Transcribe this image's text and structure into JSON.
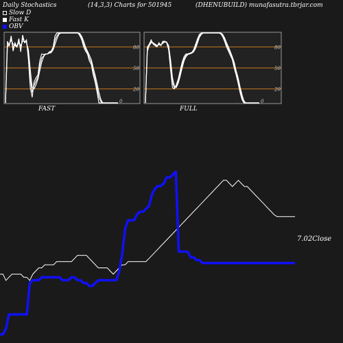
{
  "header": {
    "title": "Daily Stochastics",
    "params": "(14,3,3) Charts for 501945",
    "source": "(DHENUBUILD) munafasutra.tbrjar.com"
  },
  "legend": [
    {
      "label": "Slow  D",
      "color": "#ffffff"
    },
    {
      "label": "Fast K",
      "color": "#ffffff"
    },
    {
      "label": "OBV",
      "color": "#1010ff"
    }
  ],
  "colors": {
    "background": "#1a1a1a",
    "panel": "#222222",
    "level_line": "#c8781e",
    "obv": "#1010ff",
    "price": "#ffffff"
  },
  "chart_data": [
    {
      "type": "line",
      "title": "FAST",
      "ylim": [
        0,
        100
      ],
      "yticks": [
        "80",
        "50",
        "20",
        "0"
      ],
      "levels": [
        80,
        50,
        20
      ],
      "x": [
        0,
        1,
        2,
        3,
        4,
        5,
        6,
        7,
        8,
        9,
        10,
        11,
        12,
        13,
        14,
        15,
        16,
        17,
        18,
        19,
        20,
        21,
        22,
        23,
        24,
        25,
        26,
        27,
        28,
        29,
        30,
        31,
        32,
        33,
        34,
        35,
        36,
        37,
        38,
        39,
        40,
        41,
        42,
        43,
        44,
        45,
        46,
        47,
        48,
        49,
        50,
        51,
        52,
        53,
        54,
        55,
        56,
        57,
        58,
        59
      ],
      "series": [
        {
          "name": "Fast K",
          "values": [
            0,
            88,
            82,
            96,
            74,
            86,
            80,
            92,
            73,
            97,
            86,
            90,
            62,
            22,
            8,
            30,
            36,
            40,
            60,
            70,
            69,
            70,
            70,
            73,
            74,
            80,
            96,
            100,
            100,
            100,
            100,
            100,
            100,
            100,
            100,
            100,
            100,
            100,
            100,
            96,
            90,
            80,
            74,
            70,
            60,
            55,
            40,
            30,
            16,
            0,
            0,
            0,
            0,
            0,
            0,
            0,
            0,
            0,
            0,
            0
          ]
        },
        {
          "name": "Slow D",
          "values": [
            0,
            80,
            84,
            90,
            84,
            82,
            80,
            86,
            82,
            88,
            88,
            86,
            76,
            48,
            22,
            20,
            26,
            34,
            46,
            58,
            66,
            70,
            70,
            71,
            72,
            76,
            84,
            92,
            98,
            100,
            100,
            100,
            100,
            100,
            100,
            100,
            100,
            100,
            100,
            99,
            95,
            88,
            80,
            74,
            68,
            62,
            50,
            40,
            28,
            15,
            5,
            0,
            0,
            0,
            0,
            0,
            0,
            0,
            0,
            0
          ]
        },
        {
          "name": "",
          "values": [
            0,
            84,
            83,
            93,
            79,
            84,
            80,
            89,
            77,
            92,
            87,
            88,
            69,
            35,
            15,
            25,
            31,
            37,
            53,
            64,
            67,
            70,
            70,
            72,
            73,
            78,
            90,
            96,
            99,
            100,
            100,
            100,
            100,
            100,
            100,
            100,
            100,
            100,
            100,
            98,
            93,
            84,
            77,
            72,
            64,
            58,
            45,
            35,
            22,
            8,
            2,
            0,
            0,
            0,
            0,
            0,
            0,
            0,
            0,
            0
          ]
        }
      ]
    },
    {
      "type": "line",
      "title": "FULL",
      "ylim": [
        0,
        100
      ],
      "yticks": [
        "80",
        "50",
        "20",
        "0"
      ],
      "levels": [
        80,
        50,
        20
      ],
      "x": [
        0,
        1,
        2,
        3,
        4,
        5,
        6,
        7,
        8,
        9,
        10,
        11,
        12,
        13,
        14,
        15,
        16,
        17,
        18,
        19,
        20,
        21,
        22,
        23,
        24,
        25,
        26,
        27,
        28,
        29,
        30,
        31,
        32,
        33,
        34,
        35,
        36,
        37,
        38,
        39,
        40,
        41,
        42,
        43,
        44,
        45,
        46,
        47,
        48,
        49,
        50,
        51,
        52,
        53,
        54,
        55,
        56,
        57,
        58,
        59
      ],
      "series": [
        {
          "name": "Fast K",
          "values": [
            0,
            80,
            84,
            90,
            84,
            82,
            80,
            86,
            82,
            88,
            88,
            86,
            76,
            48,
            22,
            20,
            26,
            34,
            46,
            58,
            66,
            70,
            70,
            71,
            72,
            76,
            84,
            92,
            98,
            100,
            100,
            100,
            100,
            100,
            100,
            100,
            100,
            100,
            100,
            99,
            95,
            88,
            80,
            74,
            68,
            62,
            50,
            40,
            28,
            15,
            5,
            0,
            0,
            0,
            0,
            0,
            0,
            0,
            0,
            0
          ]
        },
        {
          "name": "Slow D",
          "values": [
            0,
            74,
            82,
            86,
            86,
            84,
            82,
            83,
            83,
            85,
            87,
            87,
            82,
            62,
            36,
            24,
            22,
            28,
            38,
            50,
            60,
            66,
            69,
            70,
            71,
            73,
            78,
            86,
            94,
            98,
            100,
            100,
            100,
            100,
            100,
            100,
            100,
            100,
            100,
            100,
            98,
            93,
            86,
            80,
            73,
            66,
            58,
            46,
            36,
            23,
            12,
            3,
            0,
            0,
            0,
            0,
            0,
            0,
            0,
            0
          ]
        },
        {
          "name": "",
          "values": [
            0,
            77,
            83,
            88,
            85,
            83,
            81,
            85,
            82,
            87,
            88,
            87,
            79,
            55,
            29,
            22,
            24,
            31,
            42,
            54,
            63,
            68,
            70,
            71,
            72,
            75,
            81,
            89,
            96,
            99,
            100,
            100,
            100,
            100,
            100,
            100,
            100,
            100,
            100,
            100,
            97,
            91,
            83,
            77,
            71,
            64,
            54,
            43,
            32,
            19,
            8,
            1,
            0,
            0,
            0,
            0,
            0,
            0,
            0,
            0
          ]
        }
      ]
    },
    {
      "type": "line",
      "title": "",
      "annotation": "7.02Close",
      "x": [
        0,
        1,
        2,
        3,
        4,
        5,
        6,
        7,
        8,
        9,
        10,
        11,
        12,
        13,
        14,
        15,
        16,
        17,
        18,
        19,
        20,
        21,
        22,
        23,
        24,
        25,
        26,
        27,
        28,
        29,
        30,
        31,
        32,
        33,
        34,
        35,
        36,
        37,
        38,
        39,
        40,
        41,
        42,
        43,
        44,
        45,
        46,
        47,
        48,
        49,
        50,
        51,
        52,
        53,
        54,
        55,
        56,
        57,
        58,
        59,
        60,
        61,
        62,
        63,
        64,
        65,
        66,
        67,
        68,
        69,
        70,
        71,
        72,
        73,
        74,
        75,
        76,
        77,
        78,
        79,
        80,
        81,
        82,
        83,
        84,
        85,
        86,
        87,
        88,
        89,
        90,
        91,
        92,
        93,
        94,
        95,
        96,
        97,
        98,
        99
      ],
      "series": [
        {
          "name": "OBV",
          "values": [
            3,
            3,
            5,
            10,
            10,
            10,
            10,
            10,
            10,
            10,
            21,
            22,
            22,
            22,
            23,
            23,
            23,
            23,
            23,
            23,
            23,
            22,
            22,
            22,
            23,
            23,
            22,
            22,
            21,
            21,
            20,
            20,
            21,
            22,
            22,
            22,
            22,
            22,
            22,
            22,
            25,
            31,
            40,
            43,
            43,
            43,
            45,
            46,
            46,
            47,
            48,
            52,
            54,
            55,
            55,
            56,
            58,
            58,
            59,
            60,
            32,
            32,
            32,
            32,
            30,
            30,
            29,
            29,
            28,
            28,
            28,
            28,
            28,
            28,
            28,
            28,
            28,
            28,
            28,
            28,
            28,
            28,
            28,
            28,
            28,
            28,
            28,
            28,
            28,
            28,
            28,
            28,
            28,
            28,
            28,
            28,
            28,
            28,
            28,
            28
          ]
        },
        {
          "name": "",
          "values": [
            6.1,
            6.1,
            6.0,
            6.05,
            6.1,
            6.1,
            6.1,
            6.1,
            6.05,
            6.05,
            6.0,
            6.1,
            6.15,
            6.2,
            6.2,
            6.25,
            6.25,
            6.25,
            6.25,
            6.3,
            6.3,
            6.3,
            6.3,
            6.3,
            6.3,
            6.35,
            6.4,
            6.4,
            6.4,
            6.4,
            6.35,
            6.3,
            6.25,
            6.2,
            6.2,
            6.2,
            6.2,
            6.15,
            6.1,
            6.15,
            6.2,
            6.25,
            6.25,
            6.3,
            6.3,
            6.3,
            6.3,
            6.3,
            6.3,
            6.3,
            6.35,
            6.4,
            6.45,
            6.5,
            6.55,
            6.6,
            6.65,
            6.7,
            6.75,
            6.8,
            6.85,
            6.9,
            6.95,
            7.0,
            7.05,
            7.1,
            7.15,
            7.2,
            7.25,
            7.3,
            7.35,
            7.4,
            7.45,
            7.5,
            7.55,
            7.6,
            7.6,
            7.55,
            7.5,
            7.55,
            7.6,
            7.55,
            7.5,
            7.5,
            7.45,
            7.4,
            7.35,
            7.3,
            7.25,
            7.2,
            7.15,
            7.1,
            7.05,
            7.02,
            7.02,
            7.02,
            7.02,
            7.02,
            7.02,
            7.02
          ]
        }
      ]
    }
  ]
}
